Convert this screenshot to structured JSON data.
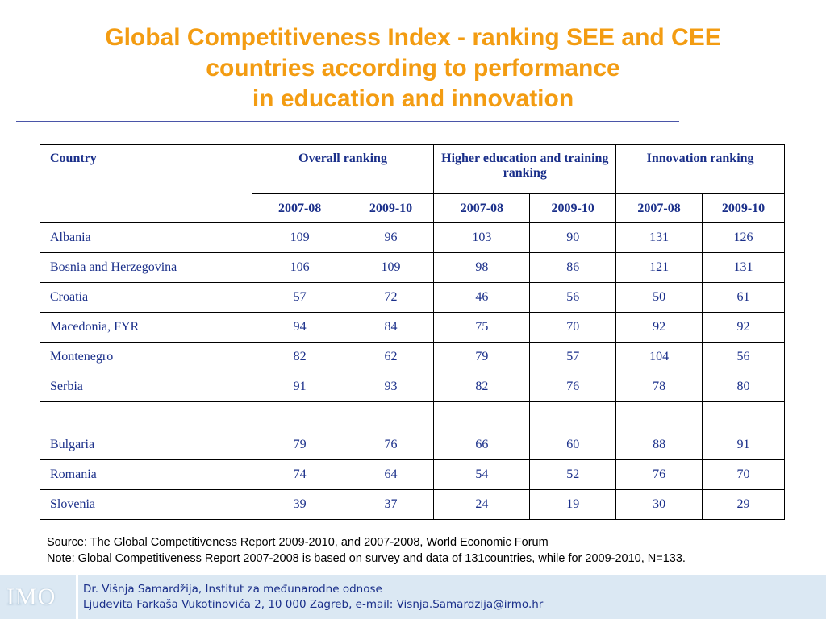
{
  "title": {
    "line1": "Global Competitiveness Index - ranking SEE and CEE",
    "line2": "countries according to performance",
    "line3": "in education and innovation"
  },
  "table": {
    "col_country": "Country",
    "col_overall": "Overall ranking",
    "col_higher_ed": "Higher education and training ranking",
    "col_innovation": "Innovation ranking",
    "years": [
      "2007-08",
      "2009-10",
      "2007-08",
      "2009-10",
      "2007-08",
      "2009-10"
    ],
    "rows": [
      {
        "country": "Albania",
        "values": [
          "109",
          "96",
          "103",
          "90",
          "131",
          "126"
        ]
      },
      {
        "country": "Bosnia and Herzegovina",
        "values": [
          "106",
          "109",
          "98",
          "86",
          "121",
          "131"
        ]
      },
      {
        "country": "Croatia",
        "values": [
          "57",
          "72",
          "46",
          "56",
          "50",
          "61"
        ]
      },
      {
        "country": "Macedonia, FYR",
        "values": [
          "94",
          "84",
          "75",
          "70",
          "92",
          "92"
        ]
      },
      {
        "country": "Montenegro",
        "values": [
          "82",
          "62",
          "79",
          "57",
          "104",
          "56"
        ]
      },
      {
        "country": "Serbia",
        "values": [
          "91",
          "93",
          "82",
          "76",
          "78",
          "80"
        ]
      },
      {
        "country": "",
        "values": [
          "",
          "",
          "",
          "",
          "",
          ""
        ]
      },
      {
        "country": "Bulgaria",
        "values": [
          "79",
          "76",
          "66",
          "60",
          "88",
          "91"
        ]
      },
      {
        "country": "Romania",
        "values": [
          "74",
          "64",
          "54",
          "52",
          "76",
          "70"
        ]
      },
      {
        "country": "Slovenia",
        "values": [
          "39",
          "37",
          "24",
          "19",
          "30",
          "29"
        ]
      }
    ]
  },
  "notes": {
    "source": "Source: The Global Competitiveness Report 2009-2010, and 2007-2008, World Economic Forum",
    "note": "Note: Global Competitiveness Report 2007-2008 is based on survey and data of 131countries, while for 2009-2010, N=133."
  },
  "footer": {
    "logo": "IMO",
    "line1": "Dr. Višnja Samardžija, Institut za međunarodne odnose",
    "line2": "Ljudevita Farkaša Vukotinovića 2, 10 000 Zagreb, e-mail: Visnja.Samardzija@irmo.hr"
  },
  "colors": {
    "title": "#f39c12",
    "table_text": "#1a2f8a",
    "footer_bg": "#dbe8f3"
  }
}
